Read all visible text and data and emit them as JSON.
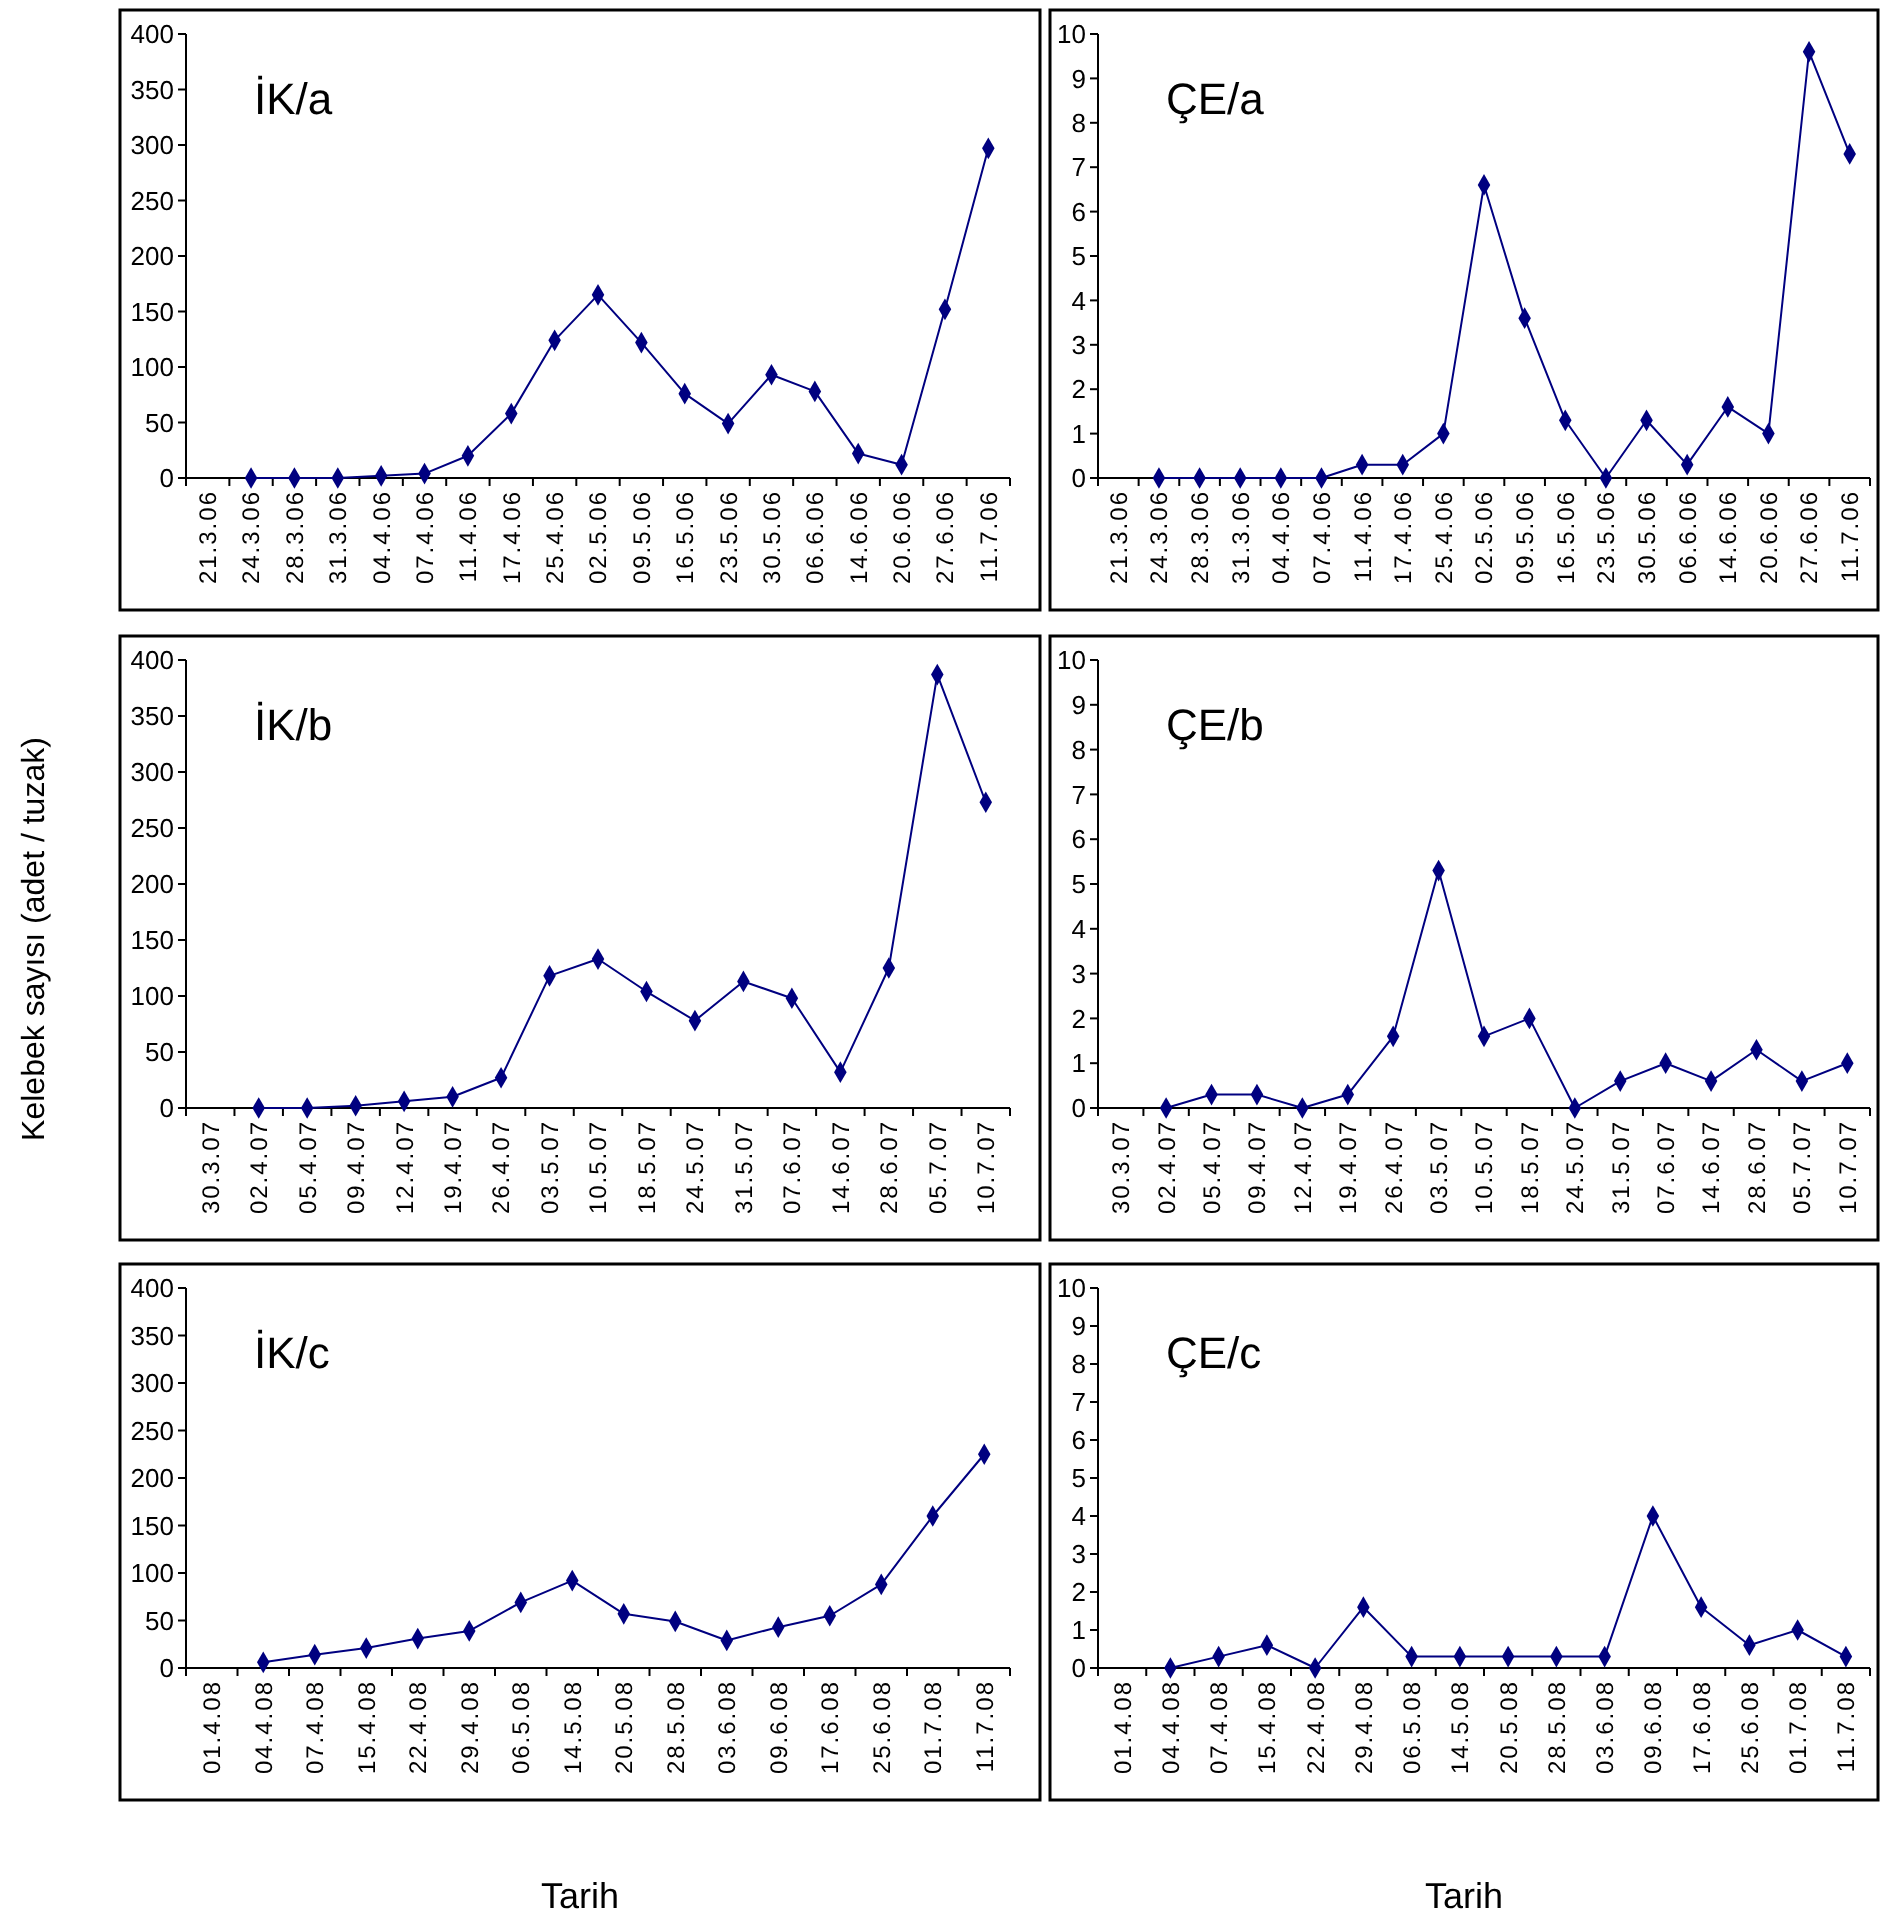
{
  "chart_data": [
    {
      "type": "line",
      "title": "İK/a",
      "categories": [
        "21.3.06",
        "24.3.06",
        "28.3.06",
        "31.3.06",
        "04.4.06",
        "07.4.06",
        "11.4.06",
        "17.4.06",
        "25.4.06",
        "02.5.06",
        "09.5.06",
        "16.5.06",
        "23.5.06",
        "30.5.06",
        "06.6.06",
        "14.6.06",
        "20.6.06",
        "27.6.06",
        "11.7.06"
      ],
      "values": [
        null,
        0,
        0,
        0,
        2,
        4,
        20,
        58,
        124,
        165,
        122,
        76,
        49,
        93,
        78,
        22,
        12,
        152,
        297
      ],
      "color": "#000080",
      "marker": "diamond",
      "ylim": [
        0,
        400
      ],
      "yticks": [
        0,
        50,
        100,
        150,
        200,
        250,
        300,
        350,
        400
      ]
    },
    {
      "type": "line",
      "title": "ÇE/a",
      "categories": [
        "21.3.06",
        "24.3.06",
        "28.3.06",
        "31.3.06",
        "04.4.06",
        "07.4.06",
        "11.4.06",
        "17.4.06",
        "25.4.06",
        "02.5.06",
        "09.5.06",
        "16.5.06",
        "23.5.06",
        "30.5.06",
        "06.6.06",
        "14.6.06",
        "20.6.06",
        "27.6.06",
        "11.7.06"
      ],
      "values": [
        null,
        0,
        0,
        0,
        0,
        0,
        0.3,
        0.3,
        1,
        6.6,
        3.6,
        1.3,
        0,
        1.3,
        0.3,
        1.6,
        1,
        9.6,
        7.3
      ],
      "color": "#000080",
      "marker": "diamond",
      "ylim": [
        0,
        10
      ],
      "yticks": [
        0,
        1,
        2,
        3,
        4,
        5,
        6,
        7,
        8,
        9,
        10
      ]
    },
    {
      "type": "line",
      "title": "İK/b",
      "ylabel": "Kelebek sayısı  (adet / tuzak)",
      "categories": [
        "30.3.07",
        "02.4.07",
        "05.4.07",
        "09.4.07",
        "12.4.07",
        "19.4.07",
        "26.4.07",
        "03.5.07",
        "10.5.07",
        "18.5.07",
        "24.5.07",
        "31.5.07",
        "07.6.07",
        "14.6.07",
        "28.6.07",
        "05.7.07",
        "10.7.07"
      ],
      "values": [
        null,
        0,
        0,
        2,
        6,
        10,
        27,
        118,
        133,
        104,
        78,
        113,
        98,
        32,
        125,
        387,
        273
      ],
      "color": "#000080",
      "marker": "diamond",
      "ylim": [
        0,
        400
      ],
      "yticks": [
        0,
        50,
        100,
        150,
        200,
        250,
        300,
        350,
        400
      ]
    },
    {
      "type": "line",
      "title": "ÇE/b",
      "categories": [
        "30.3.07",
        "02.4.07",
        "05.4.07",
        "09.4.07",
        "12.4.07",
        "19.4.07",
        "26.4.07",
        "03.5.07",
        "10.5.07",
        "18.5.07",
        "24.5.07",
        "31.5.07",
        "07.6.07",
        "14.6.07",
        "28.6.07",
        "05.7.07",
        "10.7.07"
      ],
      "values": [
        null,
        0,
        0.3,
        0.3,
        0,
        0.3,
        1.6,
        5.3,
        1.6,
        2,
        0,
        0.6,
        1,
        0.6,
        1.3,
        0.6,
        1
      ],
      "color": "#000080",
      "marker": "diamond",
      "ylim": [
        0,
        10
      ],
      "yticks": [
        0,
        1,
        2,
        3,
        4,
        5,
        6,
        7,
        8,
        9,
        10
      ]
    },
    {
      "type": "line",
      "title": "İK/c",
      "xlabel": "Tarih",
      "categories": [
        "01.4.08",
        "04.4.08",
        "07.4.08",
        "15.4.08",
        "22.4.08",
        "29.4.08",
        "06.5.08",
        "14.5.08",
        "20.5.08",
        "28.5.08",
        "03.6.08",
        "09.6.08",
        "17.6.08",
        "25.6.08",
        "01.7.08",
        "11.7.08"
      ],
      "values": [
        null,
        6,
        14,
        21,
        31,
        39,
        69,
        92,
        57,
        49,
        29,
        43,
        55,
        88,
        160,
        225
      ],
      "color": "#000080",
      "marker": "diamond",
      "ylim": [
        0,
        400
      ],
      "yticks": [
        0,
        50,
        100,
        150,
        200,
        250,
        300,
        350,
        400
      ]
    },
    {
      "type": "line",
      "title": "ÇE/c",
      "xlabel": "Tarih",
      "categories": [
        "01.4.08",
        "04.4.08",
        "07.4.08",
        "15.4.08",
        "22.4.08",
        "29.4.08",
        "06.5.08",
        "14.5.08",
        "20.5.08",
        "28.5.08",
        "03.6.08",
        "09.6.08",
        "17.6.08",
        "25.6.08",
        "01.7.08",
        "11.7.08"
      ],
      "values": [
        null,
        0,
        0.3,
        0.6,
        0,
        1.6,
        0.3,
        0.3,
        0.3,
        0.3,
        0.3,
        4,
        1.6,
        0.6,
        1,
        0.3
      ],
      "color": "#000080",
      "marker": "diamond",
      "ylim": [
        0,
        10
      ],
      "yticks": [
        0,
        1,
        2,
        3,
        4,
        5,
        6,
        7,
        8,
        9,
        10
      ]
    }
  ]
}
